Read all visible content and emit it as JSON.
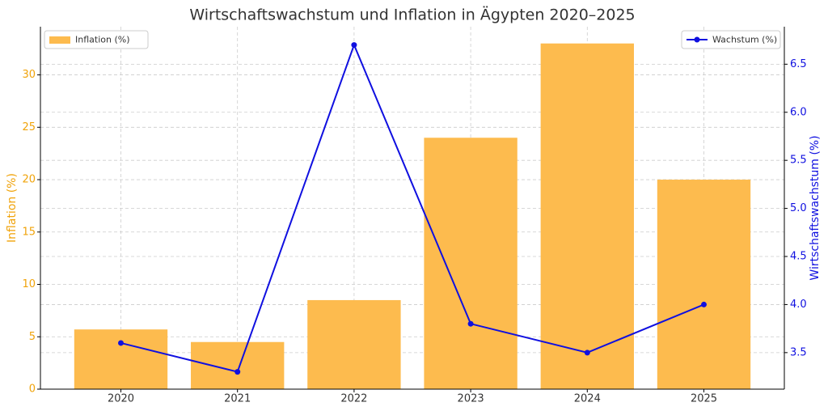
{
  "chart_data": {
    "type": "bar",
    "title": "Wirtschaftswachstum und Inflation in Ägypten 2020–2025",
    "categories": [
      "2020",
      "2021",
      "2022",
      "2023",
      "2024",
      "2025"
    ],
    "ylabel": "Inflation (%)",
    "y2label": "Wirtschaftswachstum (%)",
    "series": [
      {
        "name": "Inflation (%)",
        "type": "bar",
        "color": "#fdbb4e",
        "legend": "upper left",
        "values": [
          5.7,
          4.5,
          8.5,
          24,
          33,
          20
        ]
      },
      {
        "name": "Wachstum (%)",
        "type": "line",
        "axis": "y2",
        "color": "#1010e0",
        "legend": "upper right",
        "values": [
          3.6,
          3.3,
          6.7,
          3.8,
          3.5,
          4.0
        ]
      }
    ],
    "ylim": [
      0,
      34.6
    ],
    "yticks": [
      0,
      5,
      10,
      15,
      20,
      25,
      30
    ],
    "y2lim": [
      3.12,
      6.89
    ],
    "y2ticks": [
      3.5,
      {
        "value": 4.0,
        "label": "4.0"
      },
      4.5,
      {
        "value": 5.0,
        "label": "5.0"
      },
      5.5,
      {
        "value": 6.0,
        "label": "6.0"
      },
      6.5
    ],
    "ycolor": "#f0a30a",
    "y2color": "#1010e0",
    "grid": true
  }
}
